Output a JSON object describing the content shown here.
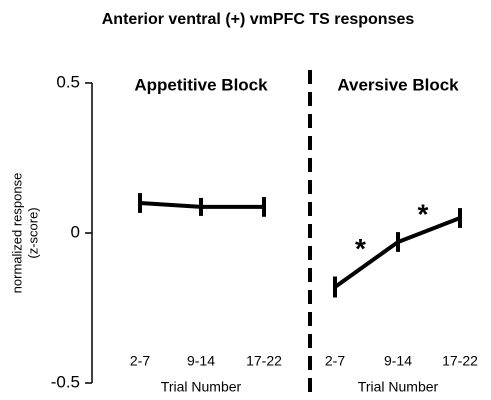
{
  "chart_data": {
    "type": "line",
    "title": "Anterior ventral (+) vmPFC TS responses",
    "ylabel": [
      "normalized response",
      "(z-score)"
    ],
    "ylim": [
      -0.5,
      0.5
    ],
    "yticks": [
      {
        "value": 0.5,
        "label": "0.5"
      },
      0,
      {
        "value": -0.5,
        "label": "-0.5"
      }
    ],
    "color": "#000000",
    "panels": [
      {
        "title": "Appetitive Block",
        "xlabel": "Trial Number",
        "categories": [
          "2-7",
          "9-14",
          "17-22"
        ],
        "values": [
          0.1,
          0.087,
          0.087
        ],
        "errors": [
          0.033,
          0.03,
          0.033
        ]
      },
      {
        "title": "Aversive Block",
        "xlabel": "Trial Number",
        "categories": [
          "2-7",
          "9-14",
          "17-22"
        ],
        "values": [
          -0.18,
          -0.03,
          0.05
        ],
        "errors": [
          0.035,
          0.033,
          0.033
        ],
        "annotations": [
          "*",
          "*"
        ]
      }
    ]
  }
}
